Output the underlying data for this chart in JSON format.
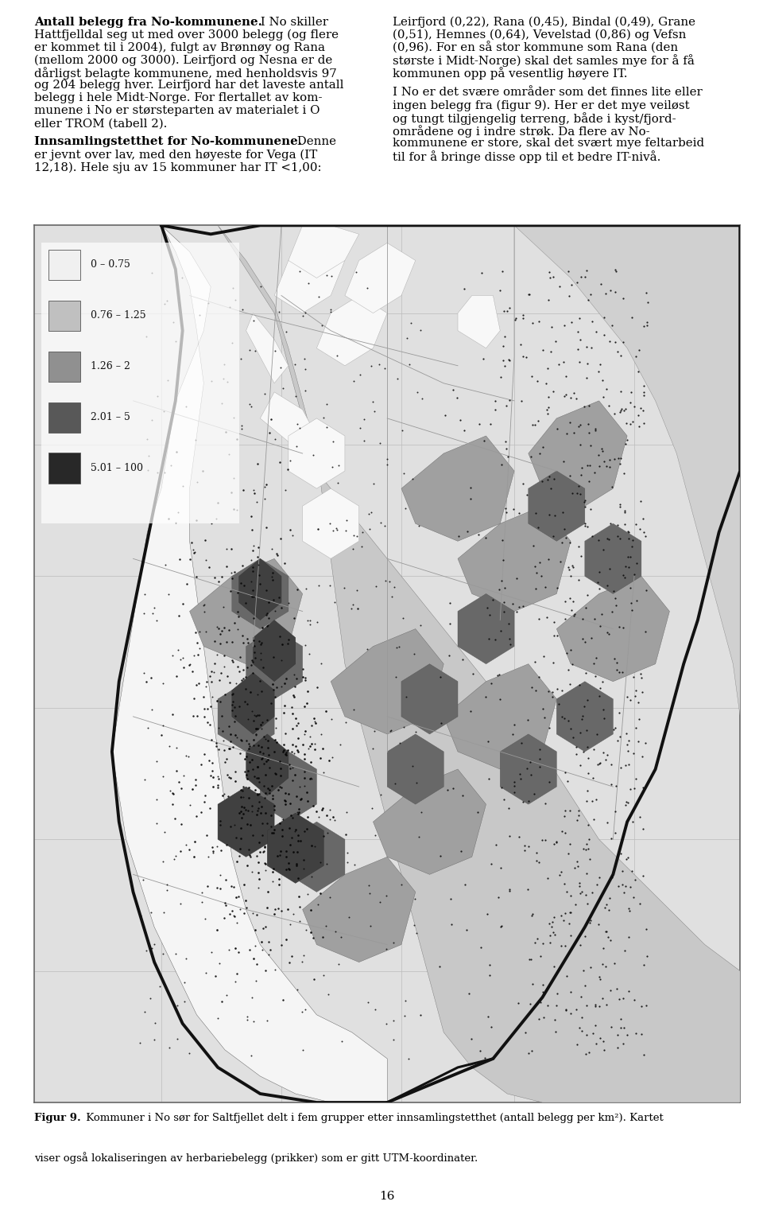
{
  "page_number": "16",
  "left_para1_bold": "Antall belegg fra No-kommunene.",
  "left_para1_rest": " I No skiller",
  "left_para1_lines": [
    "Hattfjelldal seg ut med over 3000 belegg (og flere",
    "er kommet til i 2004), fulgt av Brønnøy og Rana",
    "(mellom 2000 og 3000). Leirfjord og Nesna er de",
    "dårligst belagte kommunene, med henholdsvis 97",
    "og 204 belegg hver. Leirfjord har det laveste antall",
    "belegg i hele Midt-Norge. For flertallet av kom-",
    "munene i No er størsteparten av materialet i O",
    "eller TROM (tabell 2)."
  ],
  "left_para2_bold": "Innsamlingstetthet for No-kommunene.",
  "left_para2_rest": " Denne",
  "left_para2_lines": [
    "er jevnt over lav, med den høyeste for Vega (IT",
    "12,18). Hele sju av 15 kommuner har IT <1,00:"
  ],
  "right_lines": [
    "Leirfjord (0,22), Rana (0,45), Bindal (0,49), Grane",
    "(0,51), Hemnes (0,64), Vevelstad (0,86) og Vefsn",
    "(0,96). For en så stor kommune som Rana (den",
    "største i Midt-Norge) skal det samles mye for å få",
    "kommunen opp på vesentlig høyere IT.",
    "",
    "I No er det svære områder som det finnes lite eller",
    "ingen belegg fra (figur 9). Her er det mye veiløst",
    "og tungt tilgjengelig terreng, både i kyst/fjord-",
    "områdene og i indre strøk. Da flere av No-",
    "kommunene er store, skal det svært mye feltarbeid",
    "til for å bringe disse opp til et bedre IT-nivå."
  ],
  "caption_bold": "Figur 9.",
  "caption_line1": " Kommuner i No sør for Saltfjellet delt i fem grupper etter innsamlingstetthet (antall belegg per km²). Kartet",
  "caption_line2": "viser også lokaliseringen av herbariebelegg (prikker) som er gitt UTM-koordinater.",
  "legend_items": [
    {
      "label": "0 – 0.75",
      "color": "#f0f0f0"
    },
    {
      "label": "0.76 – 1.25",
      "color": "#c0c0c0"
    },
    {
      "label": "1.26 – 2",
      "color": "#909090"
    },
    {
      "label": "2.01 – 5",
      "color": "#585858"
    },
    {
      "label": "5.01 – 100",
      "color": "#282828"
    }
  ],
  "background_color": "#ffffff",
  "text_color": "#000000",
  "map_bg": "#d8d8d8",
  "map_border_color": "#111111",
  "map_light_region": "#f5f5f5",
  "map_medium_light": "#c8c8c8",
  "map_medium": "#a0a0a0",
  "map_medium_dark": "#686868",
  "map_dark": "#404040",
  "font_size_body": 10.8,
  "font_size_caption": 9.5,
  "font_size_legend": 9.0,
  "font_size_page": 11
}
